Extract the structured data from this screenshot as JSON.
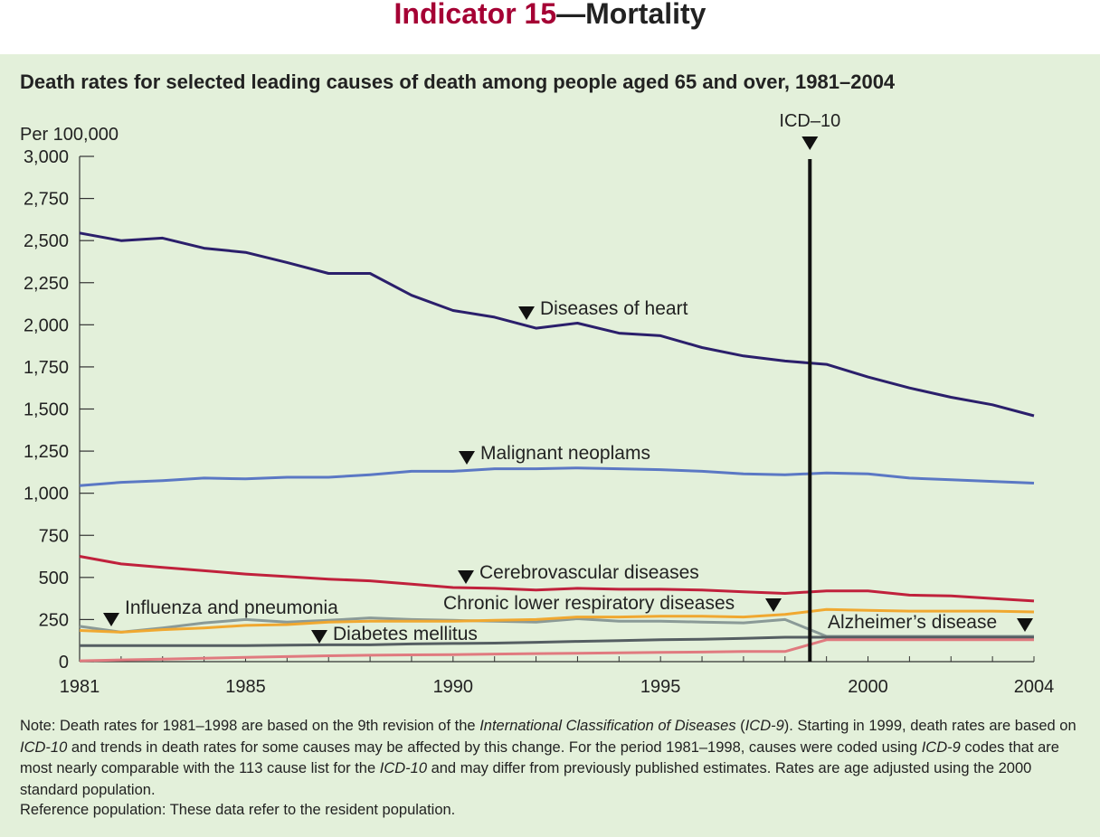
{
  "header": {
    "indicator": "Indicator 15",
    "topic": "—Mortality"
  },
  "chart_data": {
    "type": "line",
    "title": "Death rates for selected leading causes of death among people aged 65 and over, 1981–2004",
    "ylabel": "Per 100,000",
    "xlabel": "",
    "ylim": [
      0,
      3000
    ],
    "yticks": [
      0,
      250,
      500,
      750,
      1000,
      1250,
      1500,
      1750,
      2000,
      2250,
      2500,
      2750,
      3000
    ],
    "ytick_labels": [
      "0",
      "250",
      "500",
      "750",
      "1,000",
      "1,250",
      "1,500",
      "1,750",
      "2,000",
      "2,250",
      "2,500",
      "2,750",
      "3,000"
    ],
    "x": [
      1981,
      1982,
      1983,
      1984,
      1985,
      1986,
      1987,
      1988,
      1989,
      1990,
      1991,
      1992,
      1993,
      1994,
      1995,
      1996,
      1997,
      1998,
      1999,
      2000,
      2001,
      2002,
      2003,
      2004
    ],
    "xtick_labels": [
      "1981",
      "1985",
      "1990",
      "1995",
      "2000",
      "2004"
    ],
    "xtick_values": [
      1981,
      1985,
      1990,
      1995,
      2000,
      2004
    ],
    "annotation": {
      "label": "ICD–10",
      "x": 1998.6
    },
    "series": [
      {
        "name": "Diseases of heart",
        "color": "#2b1f6b",
        "values": [
          2545,
          2500,
          2515,
          2455,
          2430,
          2370,
          2305,
          2305,
          2175,
          2085,
          2045,
          1980,
          2010,
          1950,
          1935,
          1865,
          1815,
          1785,
          1765,
          1690,
          1625,
          1570,
          1525,
          1460
        ]
      },
      {
        "name": "Malignant neoplams",
        "color": "#5b78c4",
        "values": [
          1045,
          1065,
          1075,
          1090,
          1085,
          1095,
          1095,
          1110,
          1130,
          1130,
          1145,
          1145,
          1150,
          1145,
          1140,
          1130,
          1115,
          1110,
          1120,
          1115,
          1090,
          1080,
          1070,
          1060
        ]
      },
      {
        "name": "Cerebrovascular diseases",
        "color": "#c0213c",
        "values": [
          625,
          580,
          560,
          540,
          520,
          505,
          490,
          480,
          460,
          440,
          435,
          425,
          435,
          430,
          430,
          425,
          415,
          405,
          420,
          420,
          395,
          390,
          375,
          360
        ]
      },
      {
        "name": "Chronic lower respiratory diseases",
        "color": "#8a9a97",
        "values": [
          210,
          175,
          200,
          230,
          250,
          235,
          245,
          260,
          250,
          245,
          240,
          235,
          255,
          240,
          240,
          235,
          230,
          250,
          150,
          150,
          150,
          150,
          150,
          150
        ]
      },
      {
        "name": "Influenza and pneumonia",
        "color": "#f0a830",
        "values": [
          185,
          175,
          190,
          200,
          215,
          220,
          235,
          240,
          240,
          240,
          245,
          250,
          265,
          265,
          270,
          270,
          265,
          280,
          310,
          305,
          300,
          300,
          300,
          295
        ]
      },
      {
        "name": "Diabetes mellitus",
        "color": "#555e62",
        "values": [
          95,
          95,
          95,
          95,
          95,
          98,
          100,
          100,
          105,
          108,
          110,
          115,
          120,
          125,
          130,
          133,
          138,
          145,
          145,
          145,
          145,
          145,
          145,
          145
        ]
      },
      {
        "name": "Alzheimer's disease",
        "color": "#e07a7f",
        "values": [
          5,
          10,
          15,
          20,
          25,
          30,
          35,
          38,
          40,
          42,
          45,
          48,
          50,
          52,
          55,
          57,
          60,
          60,
          130,
          130,
          130,
          130,
          130,
          130
        ]
      }
    ],
    "labels": {
      "heart": "Diseases of heart",
      "neoplasms": "Malignant neoplams",
      "cerebro": "Cerebrovascular diseases",
      "respiratory": "Chronic lower respiratory diseases",
      "influenza": "Influenza and pneumonia",
      "diabetes": "Diabetes mellitus",
      "alzheimers": "Alzheimer’s disease"
    }
  },
  "note": {
    "p1": "Note: Death rates for 1981–1998 are based on the 9th revision of the ",
    "p2": "International Classification of Diseases",
    "p3": " (",
    "p4": "ICD-9",
    "p5": "). Starting in 1999, death rates are based on ",
    "p6": "ICD-10",
    "p7": " and trends in death rates for some causes may be affected by this change. For the period 1981–1998, causes were coded using ",
    "p8": "ICD-9",
    "p9": " codes that are most nearly comparable with the 113 cause list for the ",
    "p10": "ICD-10",
    "p11": " and may differ from previously published estimates. Rates are age adjusted using the 2000 standard population.",
    "reference": "Reference population: These data refer to the resident population."
  }
}
